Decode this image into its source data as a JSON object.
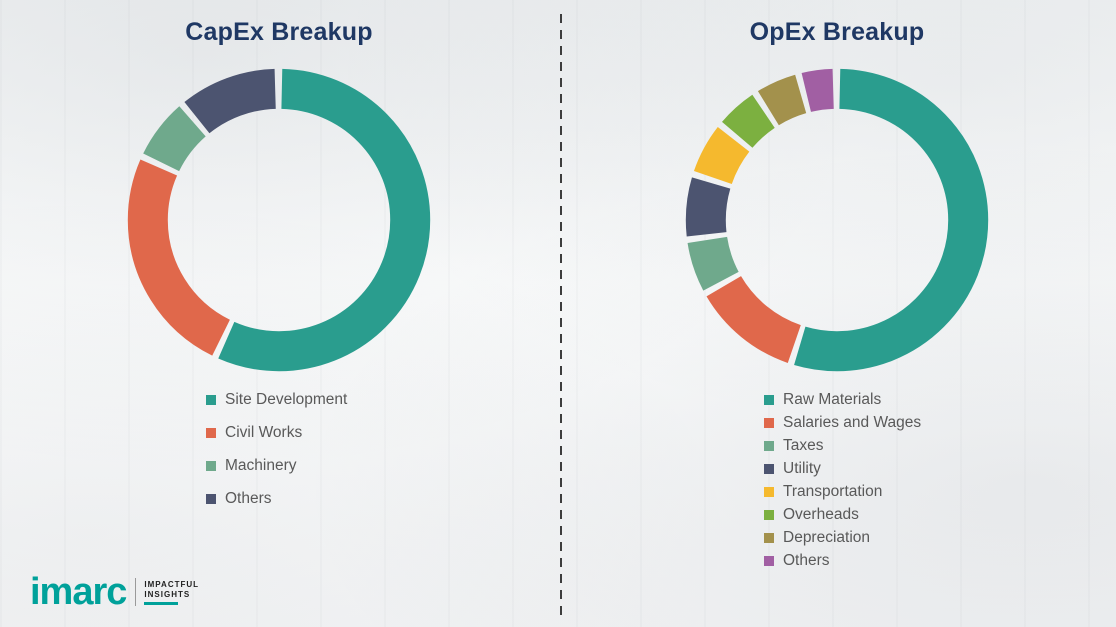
{
  "chart_data": [
    {
      "type": "pie",
      "donut": true,
      "title": "CapEx Breakup",
      "categories": [
        "Site Development",
        "Civil Works",
        "Machinery",
        "Others"
      ],
      "values": [
        57,
        25,
        7,
        11
      ],
      "colors": [
        "#2A9D8E",
        "#E0684B",
        "#6FA98C",
        "#4C5470"
      ],
      "legend_position": "bottom-left",
      "title_color": "#1F3864",
      "legend_text_color": "#595959"
    },
    {
      "type": "pie",
      "donut": true,
      "title": "OpEx Breakup",
      "categories": [
        "Raw Materials",
        "Salaries and Wages",
        "Taxes",
        "Utility",
        "Transportation",
        "Overheads",
        "Depreciation",
        "Others"
      ],
      "values": [
        55,
        12,
        6,
        7,
        6,
        5,
        5,
        4
      ],
      "colors": [
        "#2A9D8E",
        "#E0684B",
        "#6FA98C",
        "#4C5470",
        "#F5B92E",
        "#7CB040",
        "#A3914C",
        "#A15FA3"
      ],
      "legend_position": "bottom-left",
      "title_color": "#1F3864",
      "legend_text_color": "#595959"
    }
  ],
  "logo": {
    "brand": "imarc",
    "tagline_line1": "IMPACTFUL",
    "tagline_line2": "INSIGHTS"
  }
}
